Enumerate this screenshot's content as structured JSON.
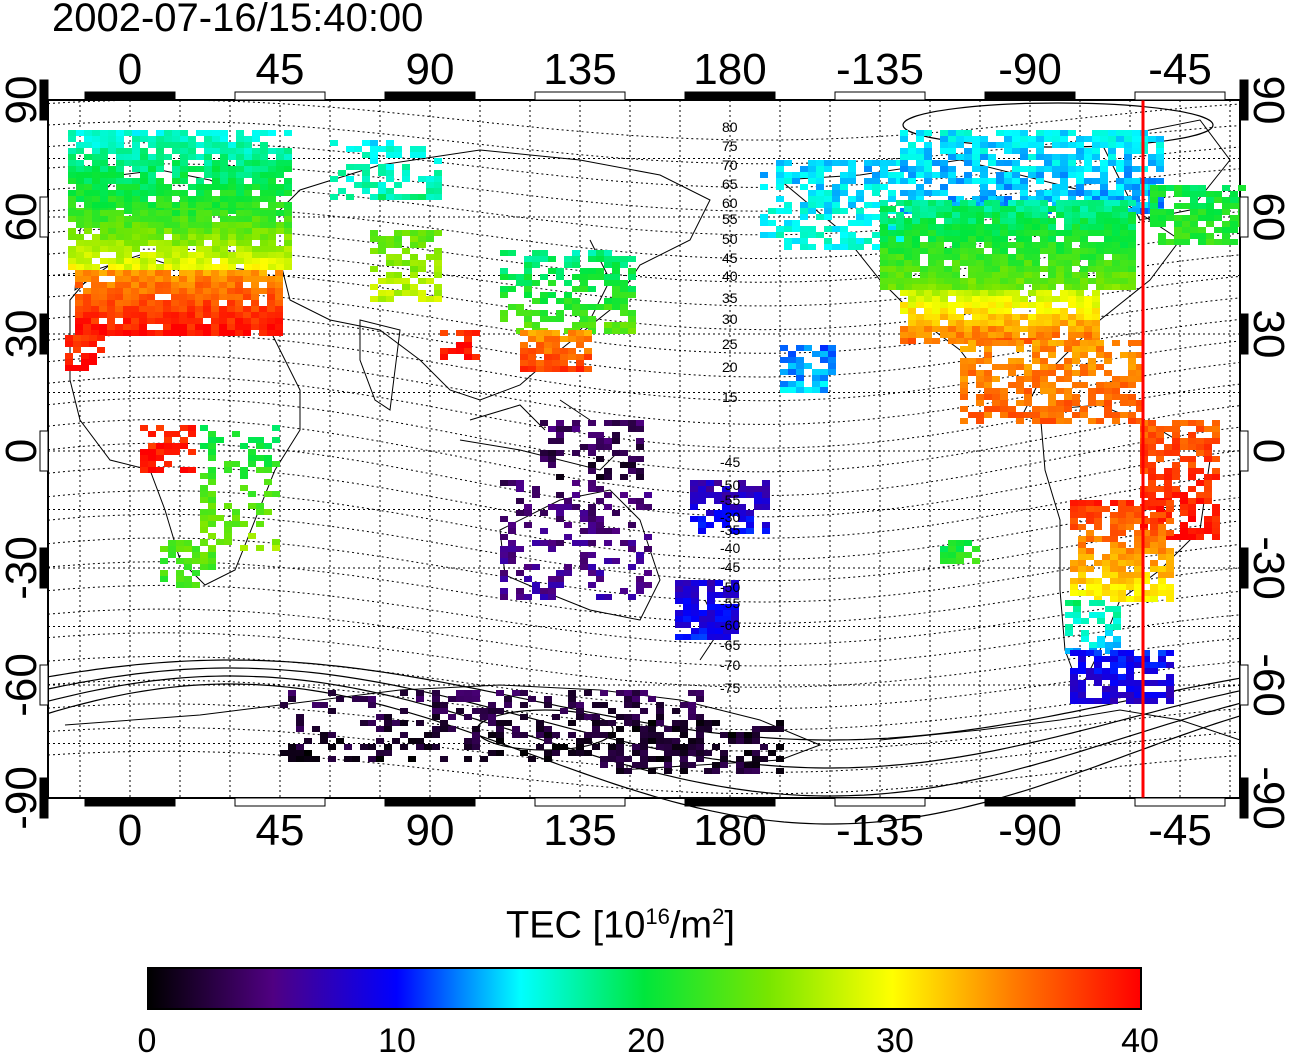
{
  "title": "2002-07-16/15:40:00",
  "map": {
    "lon_ticks": [
      "0",
      "45",
      "90",
      "135",
      "180",
      "-135",
      "-90",
      "-45"
    ],
    "lat_ticks": [
      "90",
      "60",
      "30",
      "0",
      "-30",
      "-60",
      "-90"
    ],
    "contour_labels_north": [
      "80",
      "75",
      "70",
      "65",
      "60",
      "55",
      "50",
      "45",
      "40",
      "35",
      "30",
      "25",
      "20",
      "15"
    ],
    "contour_labels_south": [
      "-45",
      "-50",
      "-55",
      "-30",
      "-35",
      "-40",
      "-45",
      "-50",
      "-55",
      "-60",
      "-65",
      "-70",
      "-75"
    ],
    "terminator_color": "#ff0000"
  },
  "colorbar": {
    "label_prefix": "TEC  [10",
    "label_sup1": "16",
    "label_mid": "/m",
    "label_sup2": "2",
    "label_suffix": "]",
    "ticks": [
      "0",
      "10",
      "20",
      "30",
      "40"
    ],
    "min": 0,
    "max": 40
  }
}
